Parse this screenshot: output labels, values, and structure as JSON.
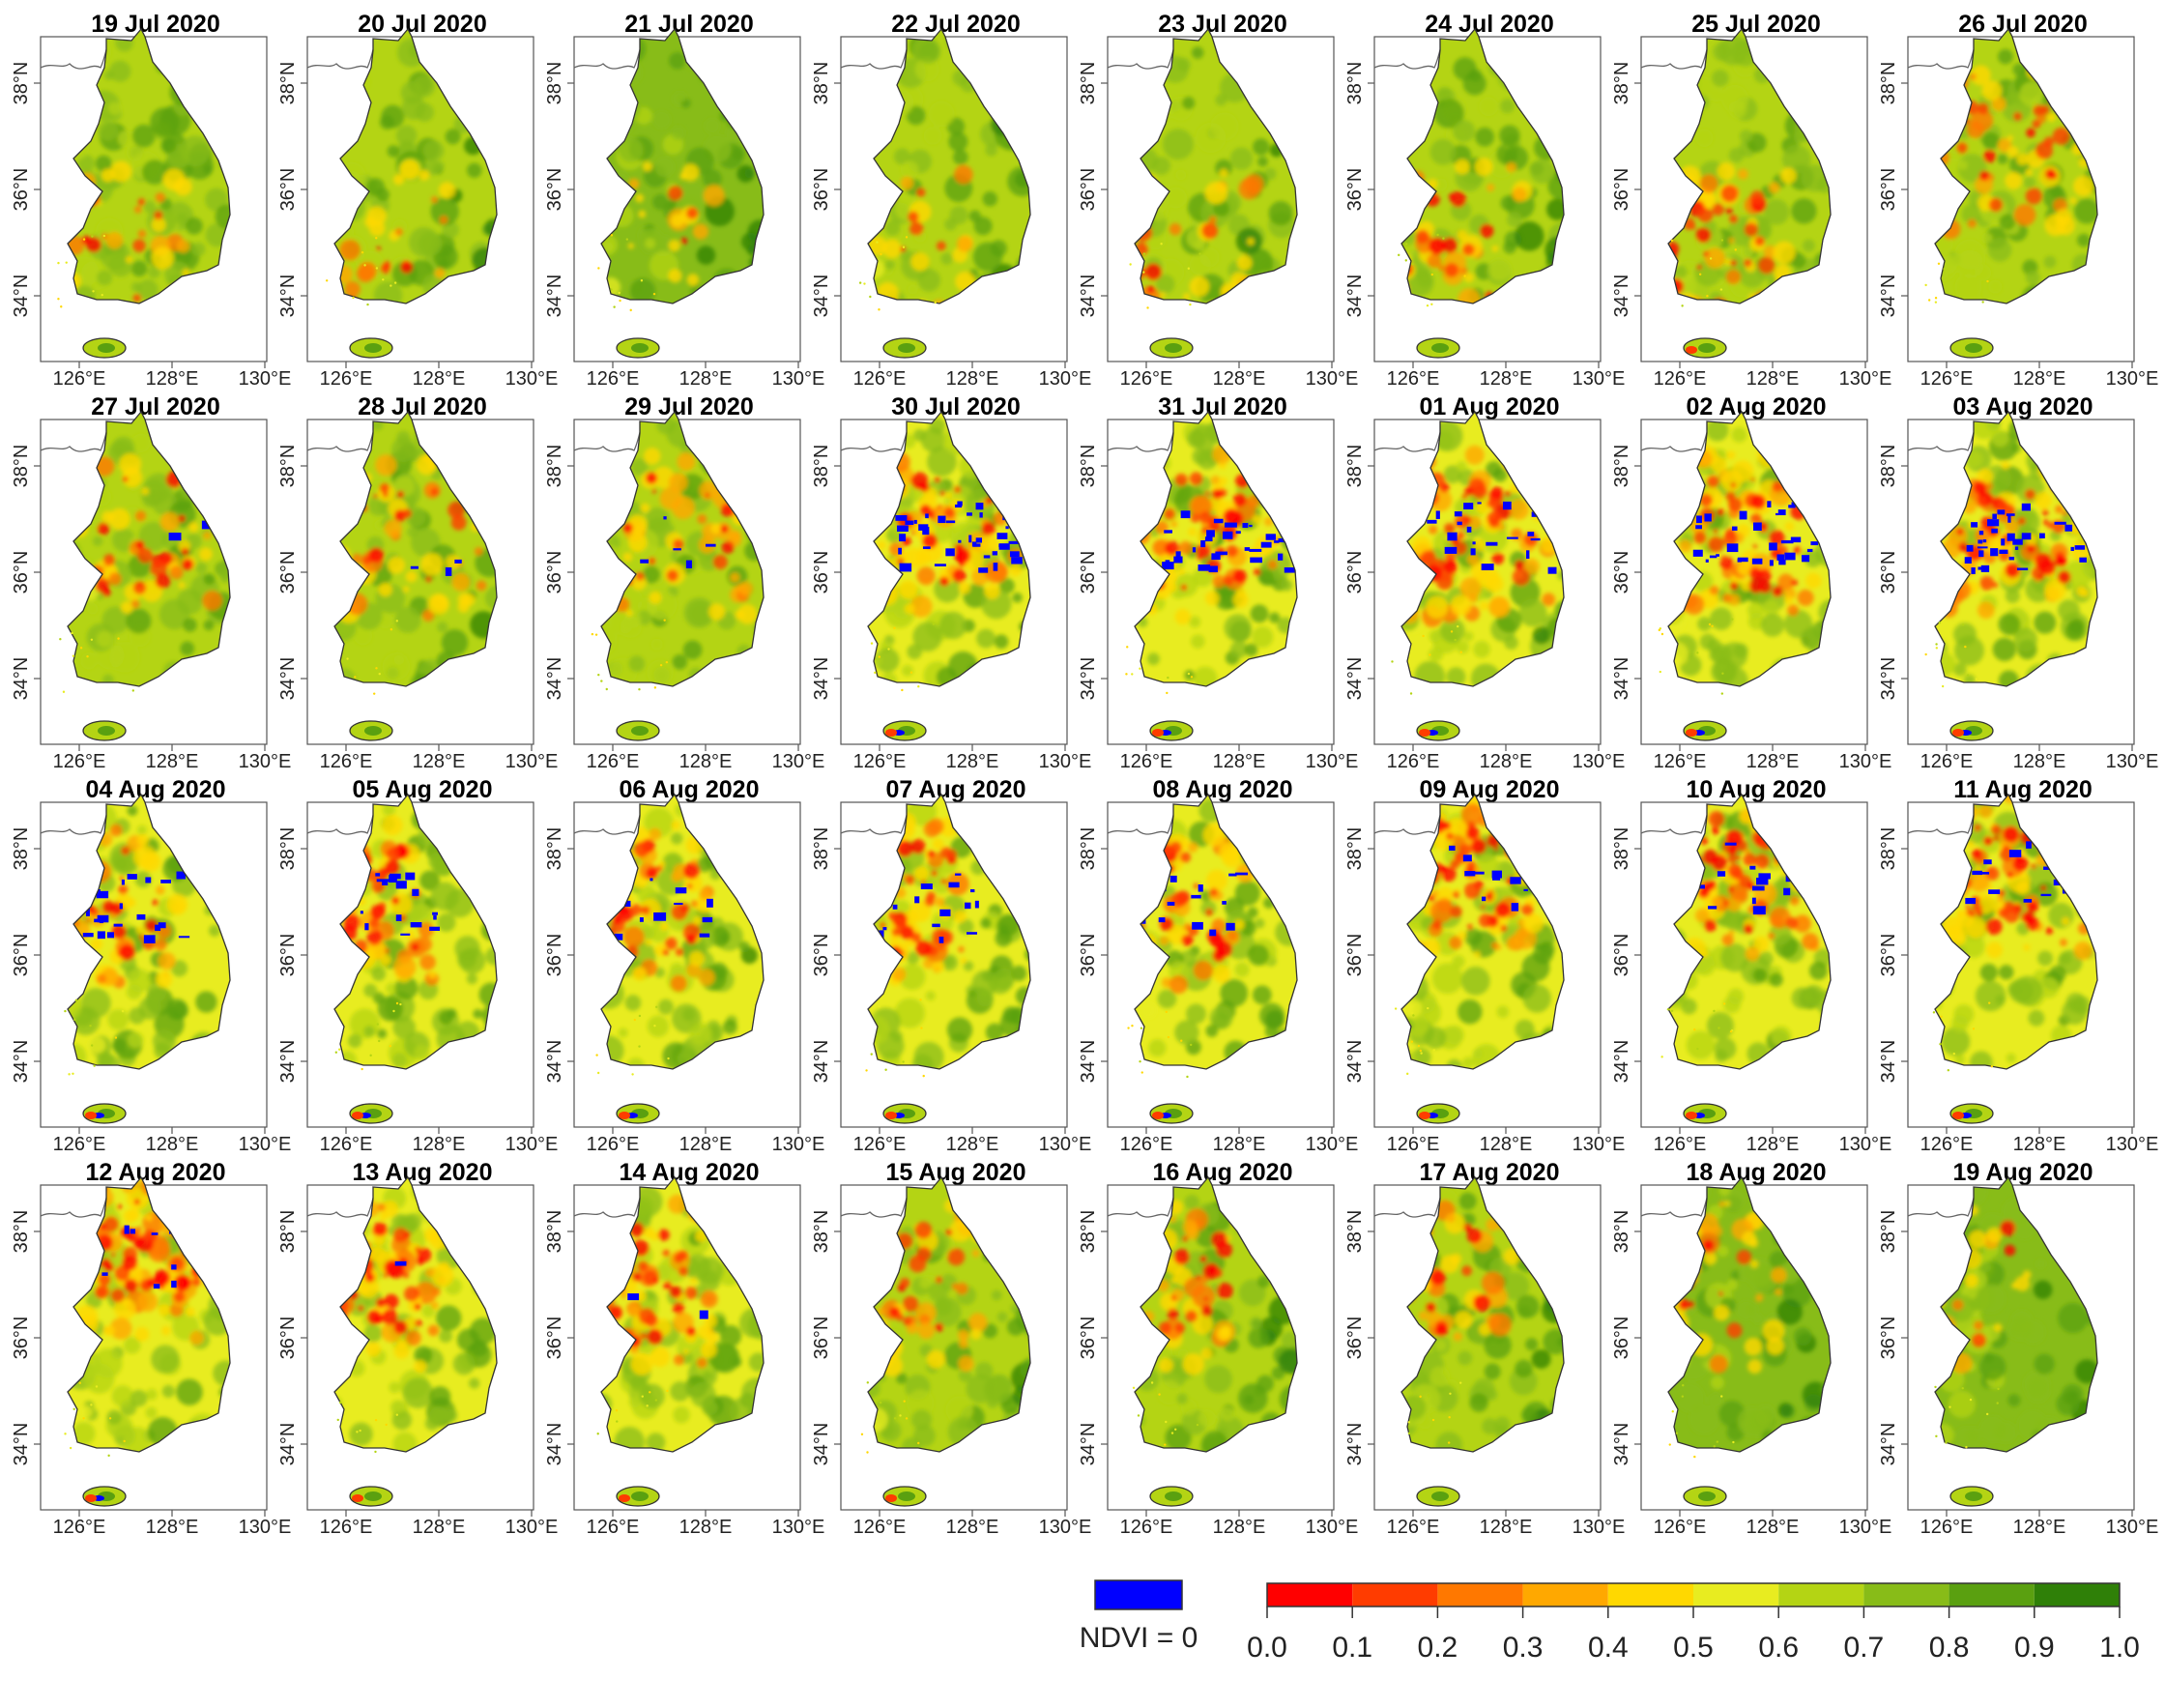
{
  "figure": {
    "panels": [
      {
        "date": "19 Jul 2020",
        "red": 0.12,
        "orange": 0.35,
        "blue": 0,
        "green": 0.55,
        "zone": "sw"
      },
      {
        "date": "20 Jul 2020",
        "red": 0.1,
        "orange": 0.3,
        "blue": 0,
        "green": 0.55,
        "zone": "sw"
      },
      {
        "date": "21 Jul 2020",
        "red": 0.04,
        "orange": 0.25,
        "blue": 0,
        "green": 0.65,
        "zone": "sw"
      },
      {
        "date": "22 Jul 2020",
        "red": 0.08,
        "orange": 0.3,
        "blue": 0,
        "green": 0.55,
        "zone": "sw"
      },
      {
        "date": "23 Jul 2020",
        "red": 0.1,
        "orange": 0.35,
        "blue": 0,
        "green": 0.55,
        "zone": "sw"
      },
      {
        "date": "24 Jul 2020",
        "red": 0.15,
        "orange": 0.4,
        "blue": 0,
        "green": 0.55,
        "zone": "sw"
      },
      {
        "date": "25 Jul 2020",
        "red": 0.35,
        "orange": 0.5,
        "blue": 0,
        "green": 0.5,
        "zone": "sw"
      },
      {
        "date": "26 Jul 2020",
        "red": 0.3,
        "orange": 0.5,
        "blue": 0,
        "green": 0.5,
        "zone": "center"
      },
      {
        "date": "27 Jul 2020",
        "red": 0.25,
        "orange": 0.45,
        "blue": 0.01,
        "green": 0.5,
        "zone": "center"
      },
      {
        "date": "28 Jul 2020",
        "red": 0.2,
        "orange": 0.45,
        "blue": 0.02,
        "green": 0.5,
        "zone": "center"
      },
      {
        "date": "29 Jul 2020",
        "red": 0.2,
        "orange": 0.45,
        "blue": 0.04,
        "green": 0.5,
        "zone": "center"
      },
      {
        "date": "30 Jul 2020",
        "red": 0.35,
        "orange": 0.55,
        "blue": 0.25,
        "green": 0.45,
        "zone": "center"
      },
      {
        "date": "31 Jul 2020",
        "red": 0.4,
        "orange": 0.55,
        "blue": 0.2,
        "green": 0.45,
        "zone": "center"
      },
      {
        "date": "01 Aug 2020",
        "red": 0.45,
        "orange": 0.55,
        "blue": 0.15,
        "green": 0.45,
        "zone": "center"
      },
      {
        "date": "02 Aug 2020",
        "red": 0.5,
        "orange": 0.6,
        "blue": 0.18,
        "green": 0.4,
        "zone": "center"
      },
      {
        "date": "03 Aug 2020",
        "red": 0.5,
        "orange": 0.6,
        "blue": 0.22,
        "green": 0.4,
        "zone": "center"
      },
      {
        "date": "04 Aug 2020",
        "red": 0.45,
        "orange": 0.6,
        "blue": 0.18,
        "green": 0.45,
        "zone": "nw"
      },
      {
        "date": "05 Aug 2020",
        "red": 0.45,
        "orange": 0.6,
        "blue": 0.14,
        "green": 0.45,
        "zone": "nw"
      },
      {
        "date": "06 Aug 2020",
        "red": 0.4,
        "orange": 0.6,
        "blue": 0.1,
        "green": 0.45,
        "zone": "nw"
      },
      {
        "date": "07 Aug 2020",
        "red": 0.45,
        "orange": 0.6,
        "blue": 0.1,
        "green": 0.45,
        "zone": "nw"
      },
      {
        "date": "08 Aug 2020",
        "red": 0.45,
        "orange": 0.6,
        "blue": 0.1,
        "green": 0.45,
        "zone": "nw"
      },
      {
        "date": "09 Aug 2020",
        "red": 0.55,
        "orange": 0.65,
        "blue": 0.08,
        "green": 0.4,
        "zone": "n"
      },
      {
        "date": "10 Aug 2020",
        "red": 0.6,
        "orange": 0.65,
        "blue": 0.08,
        "green": 0.4,
        "zone": "n"
      },
      {
        "date": "11 Aug 2020",
        "red": 0.6,
        "orange": 0.65,
        "blue": 0.08,
        "green": 0.4,
        "zone": "n"
      },
      {
        "date": "12 Aug 2020",
        "red": 0.65,
        "orange": 0.7,
        "blue": 0.05,
        "green": 0.35,
        "zone": "n"
      },
      {
        "date": "13 Aug 2020",
        "red": 0.5,
        "orange": 0.75,
        "blue": 0.01,
        "green": 0.35,
        "zone": "nw"
      },
      {
        "date": "14 Aug 2020",
        "red": 0.45,
        "orange": 0.7,
        "blue": 0.01,
        "green": 0.4,
        "zone": "nw"
      },
      {
        "date": "15 Aug 2020",
        "red": 0.35,
        "orange": 0.6,
        "blue": 0,
        "green": 0.5,
        "zone": "nw"
      },
      {
        "date": "16 Aug 2020",
        "red": 0.3,
        "orange": 0.55,
        "blue": 0,
        "green": 0.55,
        "zone": "nw"
      },
      {
        "date": "17 Aug 2020",
        "red": 0.2,
        "orange": 0.5,
        "blue": 0,
        "green": 0.6,
        "zone": "nw"
      },
      {
        "date": "18 Aug 2020",
        "red": 0.1,
        "orange": 0.4,
        "blue": 0,
        "green": 0.7,
        "zone": "nw"
      },
      {
        "date": "19 Aug 2020",
        "red": 0.05,
        "orange": 0.35,
        "blue": 0,
        "green": 0.7,
        "zone": "nw"
      }
    ],
    "lat_labels": [
      "38°N",
      "36°N",
      "34°N"
    ],
    "lon_labels": [
      "126°E",
      "128°E",
      "130°E"
    ],
    "legend": {
      "nodata_label": "NDVI = 0",
      "nodata_color": "#0000ff",
      "colors": [
        "#ff0000",
        "#ff3c00",
        "#ff7800",
        "#ffa800",
        "#ffd800",
        "#e8ec20",
        "#b4d414",
        "#88bc18",
        "#5aa010",
        "#2f8008"
      ],
      "ticks": [
        "0.0",
        "0.1",
        "0.2",
        "0.3",
        "0.4",
        "0.5",
        "0.6",
        "0.7",
        "0.8",
        "0.9",
        "1.0"
      ]
    }
  }
}
